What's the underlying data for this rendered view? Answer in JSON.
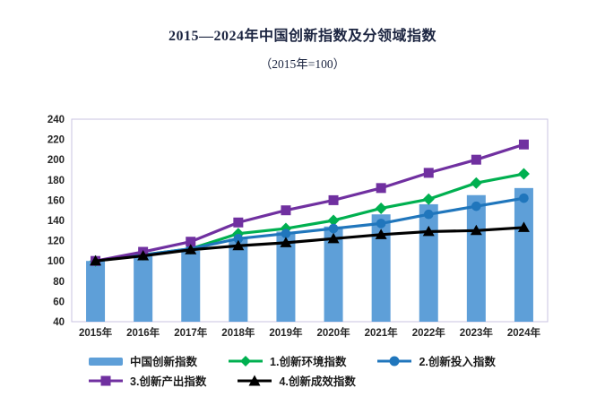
{
  "chart_data": {
    "type": "combo-bar-line",
    "title": "2015—2024年中国创新指数及分领域指数",
    "subtitle": "（2015年=100）",
    "categories": [
      "2015年",
      "2016年",
      "2017年",
      "2018年",
      "2019年",
      "2020年",
      "2021年",
      "2022年",
      "2023年",
      "2024年"
    ],
    "series": [
      {
        "name": "中国创新指数",
        "type": "bar",
        "marker": "rect",
        "color": "#5e9fd8",
        "values": [
          100,
          106,
          110,
          122,
          129,
          134,
          146,
          156,
          165,
          172
        ]
      },
      {
        "name": "1.创新环境指数",
        "type": "line",
        "marker": "diamond",
        "color": "#00b050",
        "values": [
          100,
          106,
          112,
          127,
          132,
          140,
          152,
          161,
          177,
          186
        ]
      },
      {
        "name": "2.创新投入指数",
        "type": "line",
        "marker": "circle",
        "color": "#2076bc",
        "values": [
          100,
          106,
          112,
          122,
          127,
          132,
          137,
          146,
          154,
          162
        ]
      },
      {
        "name": "3.创新产出指数",
        "type": "line",
        "marker": "square",
        "color": "#7030a0",
        "values": [
          100,
          109,
          119,
          138,
          150,
          160,
          172,
          187,
          200,
          215
        ]
      },
      {
        "name": "4.创新成效指数",
        "type": "line",
        "marker": "triangle",
        "color": "#000000",
        "values": [
          100,
          105,
          111,
          115,
          118,
          122,
          126,
          129,
          130,
          133
        ]
      }
    ],
    "ylim": [
      40,
      240
    ],
    "ytick_step": 20,
    "grid": false,
    "legend_position": "bottom",
    "plot_border_color": "#c8c3e2",
    "tick_label_color": "#262626"
  }
}
